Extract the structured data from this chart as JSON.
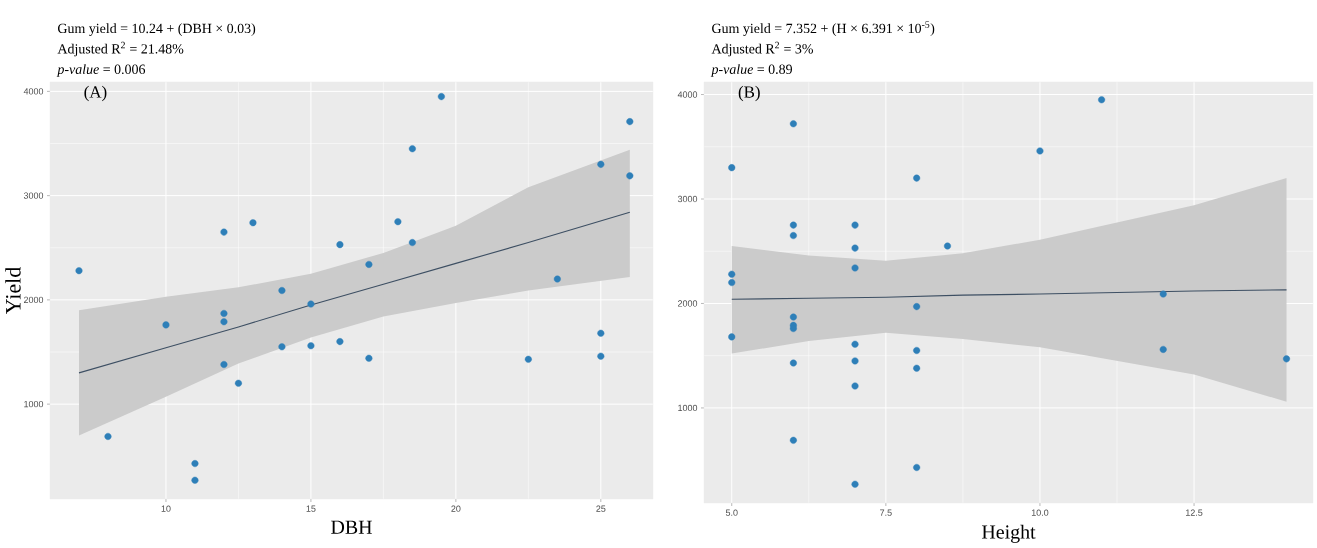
{
  "chart_data": [
    {
      "type": "scatter",
      "title": "(A)",
      "xlabel": "DBH",
      "ylabel": "Yield",
      "annotations": [
        "Gum yield = 10.24 + (DBH × 0.03)",
        "Adjusted R$^{2}$ = 21.48%",
        "*p-value* = 0.006"
      ],
      "xlim": [
        6,
        26.8
      ],
      "ylim": [
        90,
        4090
      ],
      "xticks": [
        10,
        15,
        20,
        25
      ],
      "yticks": [
        1000,
        2000,
        3000,
        4000
      ],
      "grid": true,
      "series": [
        {
          "marker": "circle",
          "color": "#2e7fb8",
          "x": [
            7,
            8,
            10,
            11,
            11,
            12,
            12,
            12,
            12,
            12.5,
            13,
            14,
            14,
            15,
            15,
            16,
            16,
            17,
            17,
            18,
            18.5,
            18.5,
            19.5,
            22.5,
            23.5,
            25,
            25,
            25,
            26,
            26
          ],
          "values": [
            2280,
            690,
            1760,
            430,
            270,
            2650,
            1870,
            1790,
            1380,
            1200,
            2740,
            2090,
            1550,
            1960,
            1560,
            2530,
            1600,
            2340,
            1440,
            2750,
            3450,
            2550,
            3950,
            1430,
            2200,
            3300,
            1680,
            1460,
            3710,
            3190
          ]
        },
        {
          "type": "line",
          "color": "#3d4f63",
          "x": [
            7,
            10,
            12.5,
            15,
            17.5,
            20,
            22.5,
            26
          ],
          "values": [
            1300,
            1540,
            1740,
            1950,
            2150,
            2350,
            2550,
            2840
          ],
          "lower": [
            700,
            1070,
            1390,
            1640,
            1840,
            1970,
            2090,
            2220
          ],
          "upper": [
            1900,
            2030,
            2120,
            2250,
            2450,
            2710,
            3080,
            3440
          ]
        }
      ]
    },
    {
      "type": "scatter",
      "title": "(B)",
      "xlabel": "Height",
      "annotations": [
        "Gum yield = 7.352 + (H × 6.391 × 10$^{-5}$)",
        "Adjusted R$^{2}$ = 3%",
        "*p-value* = 0.89"
      ],
      "xlim": [
        4.55,
        14.43
      ],
      "ylim": [
        90,
        4120
      ],
      "xticks": [
        {
          "value": 5,
          "label": "5.0"
        },
        {
          "value": 7.5,
          "label": "7.5"
        },
        {
          "value": 10,
          "label": "10.0"
        },
        {
          "value": 12.5,
          "label": "12.5"
        }
      ],
      "yticks": [
        1000,
        2000,
        3000,
        4000
      ],
      "grid": true,
      "series": [
        {
          "marker": "circle",
          "color": "#2e7fb8",
          "x": [
            5,
            5,
            5,
            5,
            6,
            6,
            6,
            6,
            6,
            6,
            6,
            6,
            7,
            7,
            7,
            7,
            7,
            7,
            7,
            8,
            8,
            8,
            8,
            8,
            8.5,
            10,
            11,
            12,
            12,
            14
          ],
          "values": [
            3300,
            2280,
            2200,
            1680,
            3720,
            2750,
            2650,
            1870,
            1790,
            1760,
            1430,
            690,
            2750,
            2530,
            2340,
            1610,
            1450,
            1210,
            270,
            3200,
            1970,
            1550,
            1380,
            430,
            2550,
            3460,
            3950,
            2090,
            1560,
            1470
          ]
        },
        {
          "type": "line",
          "color": "#3d4f63",
          "x": [
            5,
            6.25,
            7.5,
            8.75,
            10,
            12.5,
            14
          ],
          "values": [
            2040,
            2050,
            2060,
            2080,
            2090,
            2120,
            2130
          ],
          "lower": [
            1520,
            1640,
            1720,
            1660,
            1580,
            1320,
            1060
          ],
          "upper": [
            2550,
            2460,
            2410,
            2480,
            2610,
            2940,
            3200
          ]
        }
      ]
    }
  ]
}
